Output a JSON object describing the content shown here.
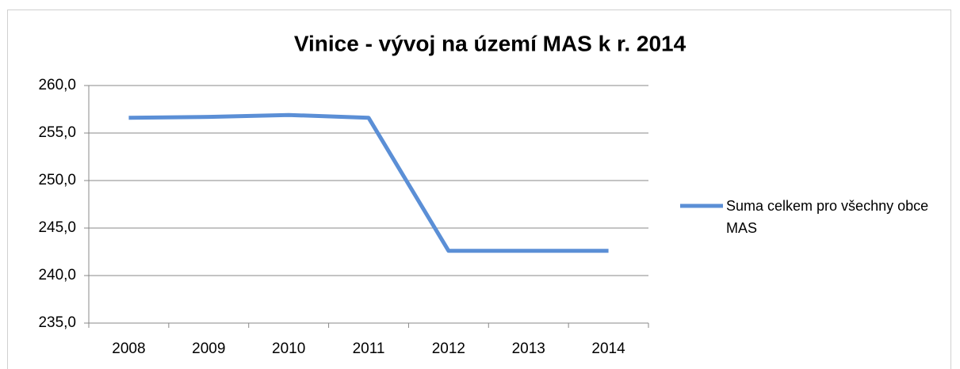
{
  "chart_data": {
    "type": "line",
    "title": "Vinice - vývoj na území MAS k r. 2014",
    "categories": [
      "2008",
      "2009",
      "2010",
      "2011",
      "2012",
      "2013",
      "2014"
    ],
    "series": [
      {
        "name": "Suma celkem pro všechny obce MAS",
        "color": "#5b8fd6",
        "values": [
          256.6,
          256.7,
          256.9,
          256.6,
          242.6,
          242.6,
          242.6
        ]
      }
    ],
    "ylim": [
      235,
      260
    ],
    "yticks": [
      {
        "value": 235,
        "label": "235,0"
      },
      {
        "value": 240,
        "label": "240,0"
      },
      {
        "value": 245,
        "label": "245,0"
      },
      {
        "value": 250,
        "label": "250,0"
      },
      {
        "value": 255,
        "label": "255,0"
      },
      {
        "value": 260,
        "label": "260,0"
      }
    ],
    "grid": true,
    "legend": "right"
  }
}
